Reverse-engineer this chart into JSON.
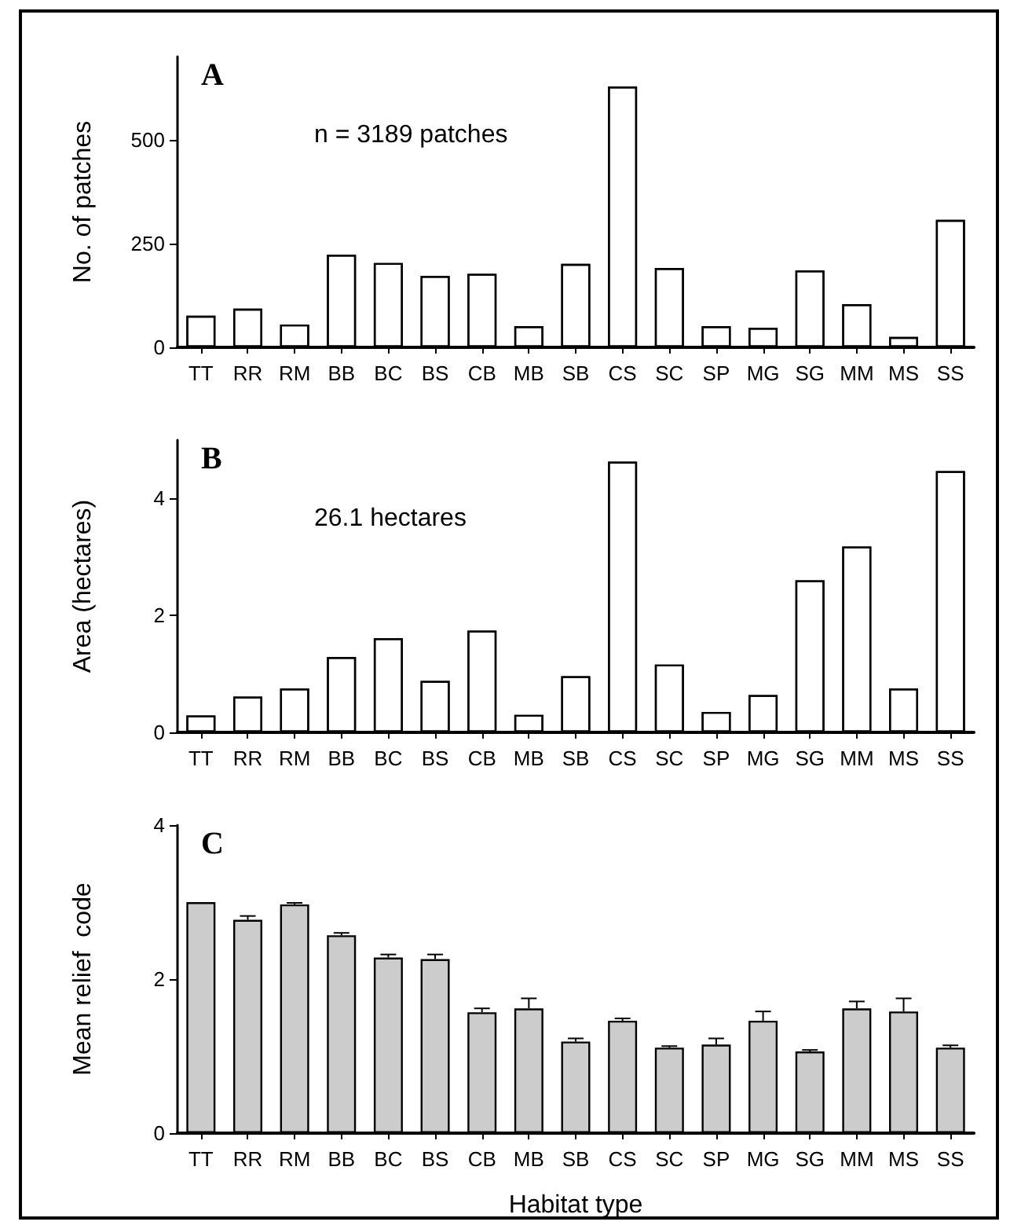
{
  "chart_data": [
    {
      "type": "bar",
      "annotations": [
        "A",
        "n = 3189 patches"
      ],
      "ylabel": "No. of patches",
      "categories": [
        "TT",
        "RR",
        "RM",
        "BB",
        "BC",
        "BS",
        "CB",
        "MB",
        "SB",
        "CS",
        "SC",
        "SP",
        "MG",
        "SG",
        "MM",
        "MS",
        "SS"
      ],
      "values": [
        76,
        93,
        55,
        223,
        203,
        172,
        177,
        51,
        201,
        628,
        191,
        51,
        47,
        185,
        104,
        25,
        307
      ],
      "color": "#ffffff",
      "ylim": [
        0,
        700
      ],
      "yticks": [
        0,
        250,
        500
      ]
    },
    {
      "type": "bar",
      "annotations": [
        "B",
        "26.1 hectares"
      ],
      "ylabel": "Area (hectares)",
      "categories": [
        "TT",
        "RR",
        "RM",
        "BB",
        "BC",
        "BS",
        "CB",
        "MB",
        "SB",
        "CS",
        "SC",
        "SP",
        "MG",
        "SG",
        "MM",
        "MS",
        "SS"
      ],
      "values": [
        0.29,
        0.61,
        0.75,
        1.29,
        1.61,
        0.88,
        1.74,
        0.3,
        0.96,
        4.63,
        1.16,
        0.35,
        0.64,
        2.6,
        3.18,
        0.75,
        4.47
      ],
      "color": "#ffffff",
      "ylim": [
        0,
        5
      ],
      "yticks": [
        0,
        2,
        4
      ]
    },
    {
      "type": "bar",
      "annotations": [
        "C"
      ],
      "ylabel": "Mean relief  code",
      "xlabel": "Habitat type",
      "categories": [
        "TT",
        "RR",
        "RM",
        "BB",
        "BC",
        "BS",
        "CB",
        "MB",
        "SB",
        "CS",
        "SC",
        "SP",
        "MG",
        "SG",
        "MM",
        "MS",
        "SS"
      ],
      "values": [
        3.0,
        2.77,
        2.97,
        2.57,
        2.28,
        2.26,
        1.57,
        1.62,
        1.19,
        1.46,
        1.11,
        1.15,
        1.46,
        1.06,
        1.62,
        1.58,
        1.11
      ],
      "errors": [
        null,
        [
          2.77,
          2.82
        ],
        [
          2.97,
          2.99
        ],
        [
          2.57,
          2.6
        ],
        [
          2.28,
          2.32
        ],
        [
          2.26,
          2.32
        ],
        [
          1.57,
          1.62
        ],
        [
          1.62,
          1.75
        ],
        [
          1.19,
          1.23
        ],
        [
          1.46,
          1.49
        ],
        [
          1.11,
          1.13
        ],
        [
          1.15,
          1.23
        ],
        [
          1.46,
          1.58
        ],
        [
          1.06,
          1.08
        ],
        [
          1.62,
          1.71
        ],
        [
          1.58,
          1.75
        ],
        [
          1.11,
          1.14
        ]
      ],
      "color": "#cccccc",
      "ylim": [
        0,
        4
      ],
      "yticks": [
        0,
        2,
        4
      ]
    }
  ]
}
